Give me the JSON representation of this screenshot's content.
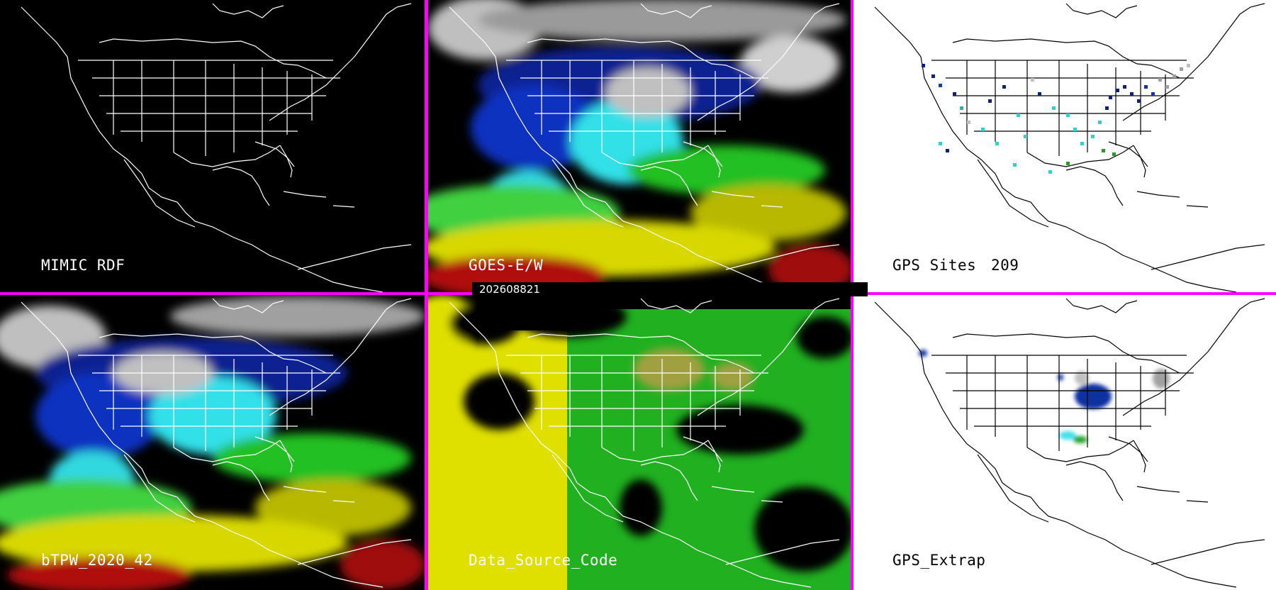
{
  "timestamp": "202608821",
  "colors": {
    "divider": "#ff00ff"
  },
  "panels": [
    {
      "id": "mimic",
      "label": "MIMIC RDF"
    },
    {
      "id": "goes",
      "label": "GOES-E/W"
    },
    {
      "id": "gps_sites",
      "label": "GPS Sites",
      "count": "209"
    },
    {
      "id": "btpw",
      "label": "bTPW_2020_42"
    },
    {
      "id": "dsc",
      "label": "Data_Source_Code"
    },
    {
      "id": "gps_extrap",
      "label": "GPS_Extrap"
    }
  ]
}
